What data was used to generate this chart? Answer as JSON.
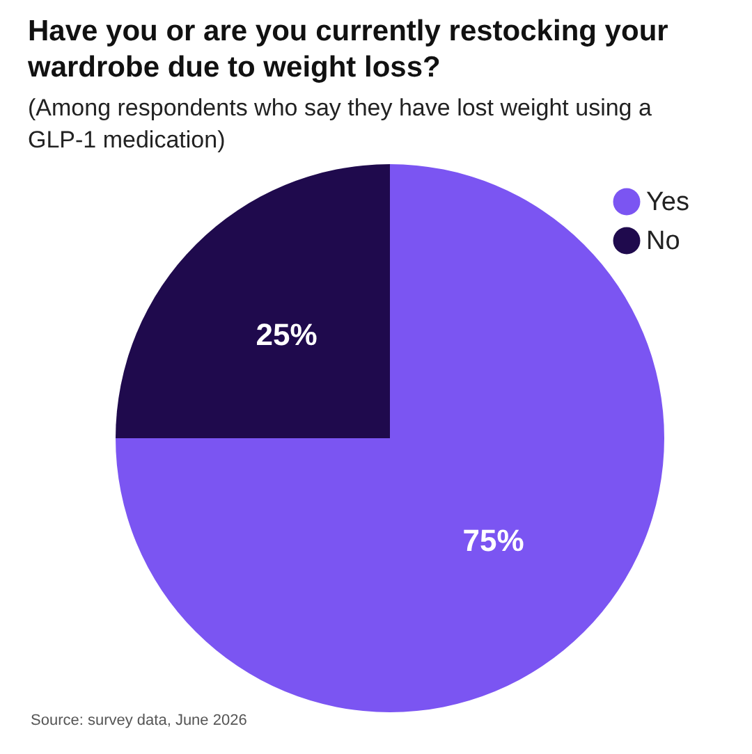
{
  "chart_data": {
    "type": "pie",
    "title": "Have you or are you currently restocking your wardrobe due to weight loss?",
    "subtitle": "(Among respondents who say they have lost weight using a GLP-1 medication)",
    "categories": [
      "Yes",
      "No"
    ],
    "values": [
      75,
      25
    ],
    "colors": [
      "#7b55f2",
      "#1f0a4d"
    ],
    "value_labels": [
      "75%",
      "25%"
    ],
    "legend": "top right",
    "annotations": [
      "Source: survey data, June 2026"
    ]
  }
}
